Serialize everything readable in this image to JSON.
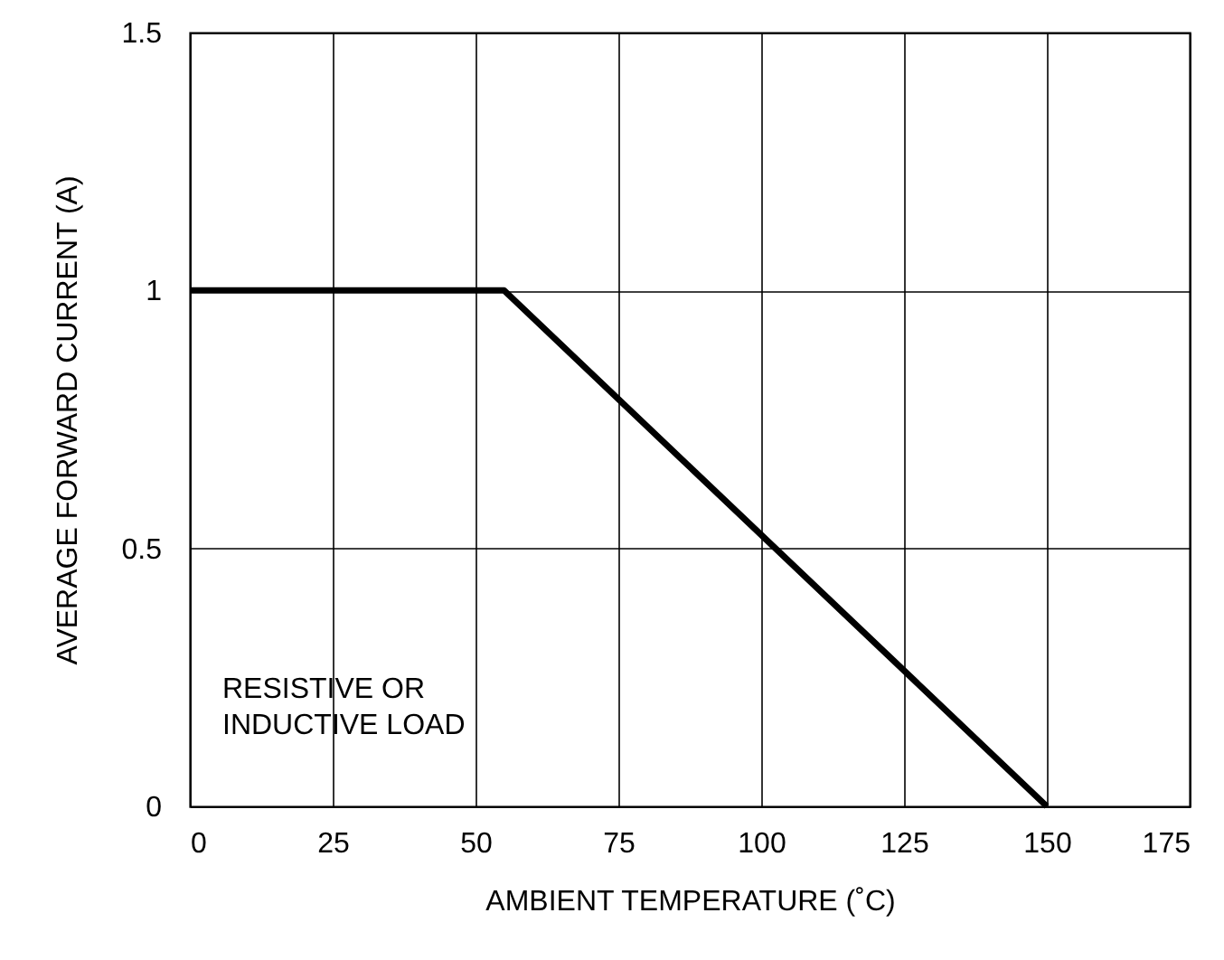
{
  "chart_data": {
    "type": "line",
    "xlabel": "AMBIENT TEMPERATURE (˚C)",
    "ylabel": "AVERAGE FORWARD CURRENT (A)",
    "x": [
      0,
      55,
      150
    ],
    "series": [
      {
        "color": "#000000",
        "values": [
          1,
          1,
          0
        ]
      }
    ],
    "xlim": [
      0,
      175
    ],
    "xticks": [
      0,
      25,
      50,
      75,
      100,
      125,
      150,
      175
    ],
    "ylim": [
      0,
      1.5
    ],
    "yticks": [
      0,
      0.5,
      1,
      1.5
    ],
    "grid": true,
    "marker": "none",
    "line_style": "solid",
    "annotations": [
      "RESISTIVE OR\nINDUCTIVE LOAD"
    ]
  }
}
